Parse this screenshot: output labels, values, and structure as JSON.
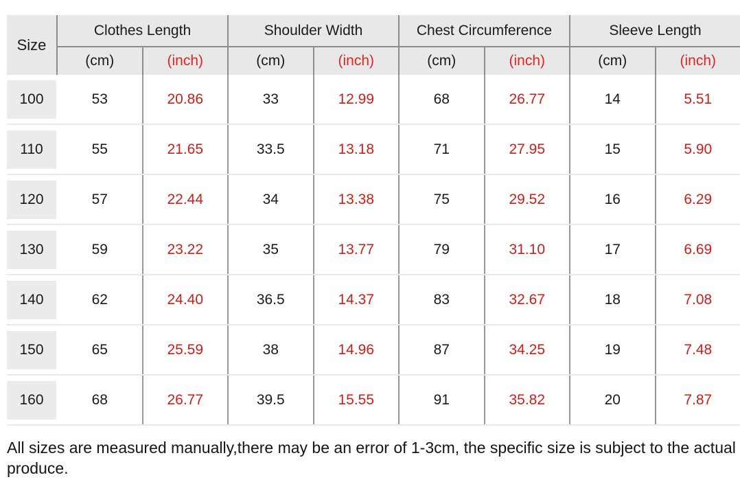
{
  "table": {
    "size_header": "Size",
    "groups": [
      {
        "label": "Clothes Length"
      },
      {
        "label": "Shoulder Width"
      },
      {
        "label": "Chest Circumference"
      },
      {
        "label": "Sleeve Length"
      }
    ],
    "units": {
      "cm": "(cm)",
      "inch": "(inch)"
    },
    "rows": [
      {
        "size": "100",
        "values": [
          "53",
          "20.86",
          "33",
          "12.99",
          "68",
          "26.77",
          "14",
          "5.51"
        ]
      },
      {
        "size": "110",
        "values": [
          "55",
          "21.65",
          "33.5",
          "13.18",
          "71",
          "27.95",
          "15",
          "5.90"
        ]
      },
      {
        "size": "120",
        "values": [
          "57",
          "22.44",
          "34",
          "13.38",
          "75",
          "29.52",
          "16",
          "6.29"
        ]
      },
      {
        "size": "130",
        "values": [
          "59",
          "23.22",
          "35",
          "13.77",
          "79",
          "31.10",
          "17",
          "6.69"
        ]
      },
      {
        "size": "140",
        "values": [
          "62",
          "24.40",
          "36.5",
          "14.37",
          "83",
          "32.67",
          "18",
          "7.08"
        ]
      },
      {
        "size": "150",
        "values": [
          "65",
          "25.59",
          "38",
          "14.96",
          "87",
          "34.25",
          "19",
          "7.48"
        ]
      },
      {
        "size": "160",
        "values": [
          "68",
          "26.77",
          "39.5",
          "15.55",
          "91",
          "35.82",
          "20",
          "7.87"
        ]
      }
    ]
  },
  "note": "All sizes are measured manually,there may be an error of 1-3cm, the specific size is subject to the actual produce.",
  "colors": {
    "header_bg": "#e8e8e8",
    "size_cell_bg": "#ebebeb",
    "grid_line": "#8c8c8c",
    "row_divider": "#e9e9e9",
    "inch_header_red": "#e02420",
    "inch_value_red": "#c5201d",
    "text": "#1a1a1a"
  },
  "chart_data": {
    "type": "table",
    "title": "Garment size chart",
    "columns": [
      "Size",
      "Clothes Length (cm)",
      "Clothes Length (inch)",
      "Shoulder Width (cm)",
      "Shoulder Width (inch)",
      "Chest Circumference (cm)",
      "Chest Circumference (inch)",
      "Sleeve Length (cm)",
      "Sleeve Length (inch)"
    ],
    "rows": [
      [
        100,
        53,
        20.86,
        33,
        12.99,
        68,
        26.77,
        14,
        5.51
      ],
      [
        110,
        55,
        21.65,
        33.5,
        13.18,
        71,
        27.95,
        15,
        5.9
      ],
      [
        120,
        57,
        22.44,
        34,
        13.38,
        75,
        29.52,
        16,
        6.29
      ],
      [
        130,
        59,
        23.22,
        35,
        13.77,
        79,
        31.1,
        17,
        6.69
      ],
      [
        140,
        62,
        24.4,
        36.5,
        14.37,
        83,
        32.67,
        18,
        7.08
      ],
      [
        150,
        65,
        25.59,
        38,
        14.96,
        87,
        34.25,
        19,
        7.48
      ],
      [
        160,
        68,
        26.77,
        39.5,
        15.55,
        91,
        35.82,
        20,
        7.87
      ]
    ],
    "note": "All sizes are measured manually,there may be an error of 1-3cm, the specific size is subject to the actual produce."
  }
}
